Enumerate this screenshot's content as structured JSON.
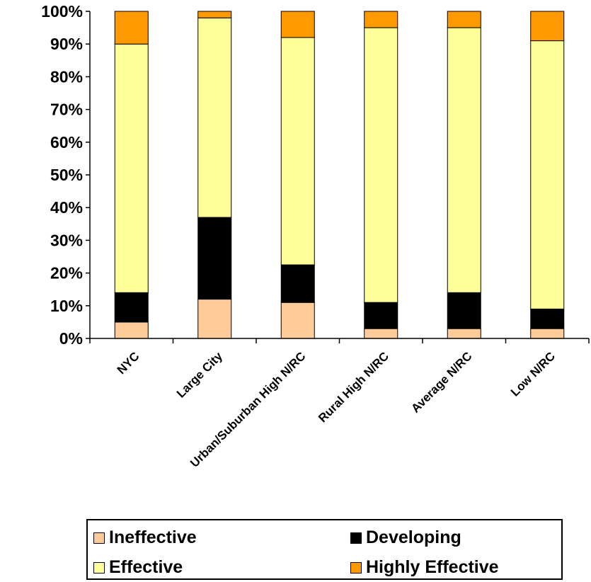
{
  "chart_data": {
    "type": "bar",
    "stacked": true,
    "percent": true,
    "categories": [
      "NYC",
      "Large City",
      "Urban/Suburban High N/RC",
      "Rural High N/RC",
      "Average N/RC",
      "Low N/RC"
    ],
    "series": [
      {
        "name": "Ineffective",
        "color": "#FFCC99",
        "values": [
          5,
          12,
          11,
          3,
          3,
          3
        ]
      },
      {
        "name": "Developing",
        "color": "#000000",
        "values": [
          9,
          25,
          11.5,
          8,
          11,
          6
        ]
      },
      {
        "name": "Effective",
        "color": "#FFFF99",
        "values": [
          76,
          61,
          69.5,
          84,
          81,
          82
        ]
      },
      {
        "name": "Highly Effective",
        "color": "#FF9900",
        "values": [
          10,
          2,
          8,
          5,
          5,
          9
        ]
      }
    ],
    "yticks": [
      "0%",
      "10%",
      "20%",
      "30%",
      "40%",
      "50%",
      "60%",
      "70%",
      "80%",
      "90%",
      "100%"
    ],
    "ylim": [
      0,
      100
    ],
    "grid": false,
    "legend_position": "bottom"
  }
}
